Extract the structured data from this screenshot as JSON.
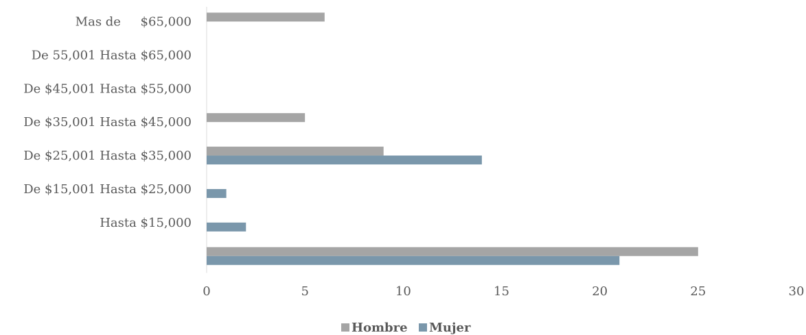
{
  "chart_data": {
    "type": "bar",
    "orientation": "horizontal",
    "categories": [
      "Mas de     $65,000",
      "De 55,001 Hasta $65,000",
      "De $45,001 Hasta $55,000",
      "De $35,001 Hasta $45,000",
      "De $25,001 Hasta $35,000",
      "De $15,001 Hasta $25,000",
      "Hasta $15,000",
      ""
    ],
    "series": [
      {
        "name": "Hombre",
        "color": "#a5a5a5",
        "values": [
          6,
          0,
          0,
          5,
          9,
          0,
          0,
          25
        ]
      },
      {
        "name": "Mujer",
        "color": "#7a97ab",
        "values": [
          0,
          0,
          0,
          0,
          14,
          1,
          2,
          21
        ]
      }
    ],
    "xlim": [
      0,
      30
    ],
    "xticks": [
      "0",
      "5",
      "10",
      "15",
      "20",
      "25",
      "30"
    ],
    "grid": false,
    "legend_position": "bottom"
  }
}
